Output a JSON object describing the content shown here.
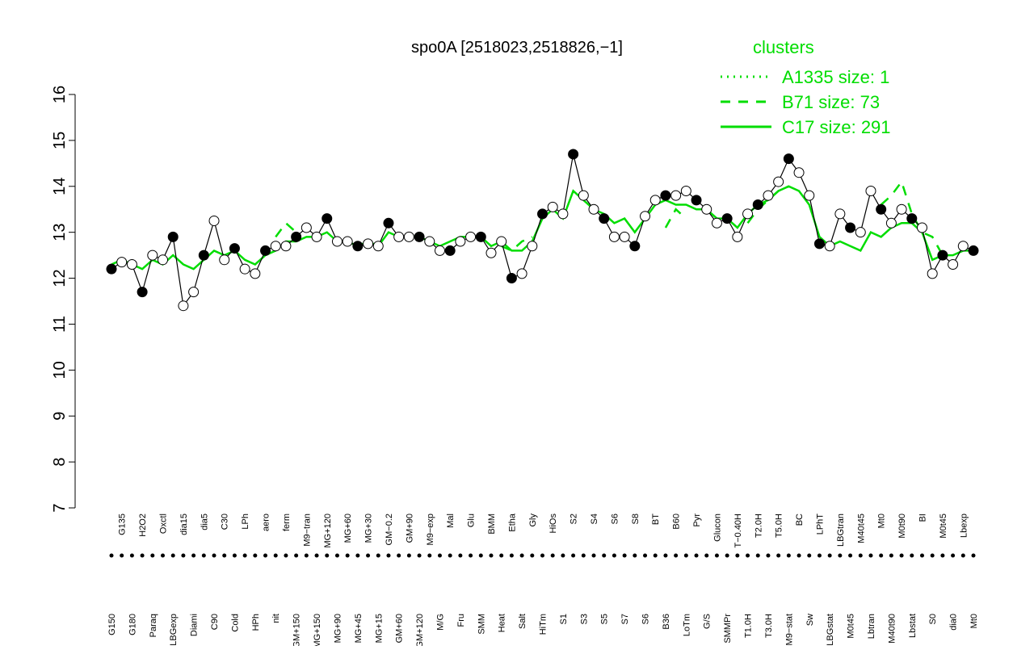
{
  "chart_data": {
    "type": "line",
    "title": "spo0A [2518023,2518826,−1]",
    "legend_title": "clusters",
    "point_color": "#000000",
    "categories": [
      "G150",
      "G135",
      "G180",
      "H2O2",
      "Paraq",
      "Oxctl",
      "LBGexp",
      "dia15",
      "Diami",
      "dia5",
      "C90",
      "C30",
      "Cold",
      "LPh",
      "HPh",
      "aero",
      "nit",
      "ferm",
      "GM+150",
      "M9−tran",
      "MG+150",
      "MG+120",
      "MG+90",
      "MG+60",
      "MG+45",
      "MG+30",
      "MG+15",
      "GM−0.2",
      "GM+60",
      "GM+90",
      "GM+120",
      "M9−exp",
      "M/G",
      "Mal",
      "Fru",
      "Glu",
      "SMM",
      "BMM",
      "Heat",
      "Etha",
      "Salt",
      "Gly",
      "HiTm",
      "HiOs",
      "S1",
      "S2",
      "S3",
      "S4",
      "S5",
      "S6",
      "S7",
      "S8",
      "S6",
      "BT",
      "B36",
      "B60",
      "LoTm",
      "Pyr",
      "G/S",
      "Glucon",
      "SMMPr",
      "T−0.40H",
      "T1.0H",
      "T2.0H",
      "T3.0H",
      "T5.0H",
      "M9−stat",
      "BC",
      "Sw",
      "LPhT",
      "LBGstat",
      "LBGtran",
      "M0t45",
      "M40t45",
      "Lbtran",
      "Mt0",
      "M40t90",
      "M0t90",
      "Lbstat",
      "BI",
      "S0",
      "M0t45",
      "dia0",
      "Lbexp",
      "Mt0"
    ],
    "values": [
      12.2,
      12.35,
      12.3,
      11.7,
      12.5,
      12.4,
      12.9,
      11.4,
      11.7,
      12.5,
      13.25,
      12.4,
      12.65,
      12.2,
      12.1,
      12.6,
      12.7,
      12.7,
      12.9,
      13.1,
      12.9,
      13.3,
      12.8,
      12.8,
      12.7,
      12.75,
      12.7,
      13.2,
      12.9,
      12.9,
      12.9,
      12.8,
      12.6,
      12.6,
      12.8,
      12.9,
      12.9,
      12.55,
      12.8,
      12.0,
      12.1,
      12.7,
      13.4,
      13.55,
      13.4,
      14.7,
      13.8,
      13.5,
      13.3,
      12.9,
      12.9,
      12.7,
      13.35,
      13.7,
      13.8,
      13.8,
      13.9,
      13.7,
      13.5,
      13.2,
      13.3,
      12.9,
      13.4,
      13.6,
      13.8,
      14.1,
      14.6,
      14.3,
      13.8,
      12.75,
      12.7,
      13.4,
      13.1,
      13.0,
      13.9,
      13.5,
      13.2,
      13.5,
      13.3,
      13.1,
      12.1,
      12.5,
      12.3,
      12.7,
      12.6
    ],
    "series": [
      {
        "name": "A1335 size: 1",
        "color": "#00dd00",
        "dash": "dotted",
        "values": [
          null,
          null,
          null,
          null,
          null,
          null,
          null,
          null,
          null,
          null,
          null,
          null,
          null,
          null,
          null,
          null,
          null,
          null,
          null,
          null,
          null,
          null,
          null,
          null,
          null,
          null,
          null,
          null,
          null,
          null,
          null,
          null,
          null,
          null,
          null,
          null,
          null,
          null,
          null,
          null,
          null,
          null,
          null,
          null,
          null,
          null,
          null,
          null,
          null,
          null,
          null,
          null,
          null,
          null,
          null,
          null,
          null,
          null,
          null,
          null,
          null,
          null,
          null,
          null,
          null,
          null,
          null,
          null,
          null,
          null,
          null,
          null,
          null,
          null,
          null,
          null,
          null,
          null,
          null,
          null,
          null,
          null,
          null,
          null,
          null
        ]
      },
      {
        "name": "B71 size: 73",
        "color": "#00dd00",
        "dash": "dashed",
        "values": [
          null,
          null,
          null,
          null,
          null,
          null,
          null,
          null,
          null,
          null,
          null,
          null,
          null,
          null,
          null,
          null,
          12.9,
          13.2,
          13.0,
          null,
          null,
          null,
          null,
          null,
          null,
          null,
          null,
          null,
          null,
          null,
          null,
          null,
          null,
          null,
          null,
          null,
          null,
          null,
          12.7,
          12.6,
          12.8,
          12.9,
          null,
          null,
          null,
          null,
          null,
          null,
          null,
          null,
          null,
          null,
          null,
          null,
          13.1,
          13.5,
          13.3,
          null,
          null,
          null,
          null,
          null,
          13.2,
          13.5,
          13.7,
          13.9,
          14.0,
          null,
          null,
          null,
          null,
          null,
          null,
          null,
          null,
          13.6,
          13.8,
          14.1,
          13.4,
          13.0,
          12.9,
          12.5,
          null,
          null,
          null
        ]
      },
      {
        "name": "C17 size: 291",
        "color": "#00dd00",
        "dash": "solid",
        "values": [
          12.3,
          12.4,
          12.3,
          12.2,
          12.4,
          12.3,
          12.5,
          12.3,
          12.2,
          12.4,
          12.6,
          12.5,
          12.6,
          12.4,
          12.3,
          12.5,
          12.6,
          12.8,
          12.8,
          12.9,
          12.9,
          13.0,
          12.8,
          12.8,
          12.7,
          12.8,
          12.7,
          13.0,
          12.9,
          12.9,
          12.9,
          12.8,
          12.7,
          12.8,
          12.9,
          12.9,
          12.9,
          12.7,
          12.8,
          12.6,
          12.6,
          12.8,
          13.3,
          13.5,
          13.3,
          13.9,
          13.7,
          13.5,
          13.4,
          13.2,
          13.3,
          13.0,
          13.3,
          13.6,
          13.7,
          13.6,
          13.6,
          13.5,
          13.5,
          13.3,
          13.3,
          13.1,
          13.4,
          13.6,
          13.7,
          13.9,
          14.0,
          13.9,
          13.6,
          12.9,
          12.7,
          12.8,
          12.7,
          12.6,
          13.0,
          12.9,
          13.1,
          13.2,
          13.2,
          13.0,
          12.4,
          12.5,
          12.5,
          12.6,
          12.6
        ]
      }
    ],
    "ylim": [
      7,
      16
    ],
    "yticks": [
      7,
      8,
      9,
      10,
      11,
      12,
      13,
      14,
      15,
      16
    ]
  }
}
